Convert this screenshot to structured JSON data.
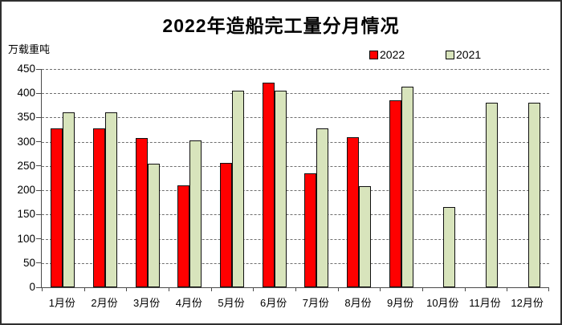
{
  "title": "2022年造船完工量分月情况",
  "unit_label": "万载重吨",
  "colors": {
    "series_2022": "#ff0000",
    "series_2021": "#d8e4bc",
    "bar_border": "#101010",
    "axis": "#4a4a4a",
    "gridline": "#707070",
    "frame_border": "#2f2f2f",
    "background": "#ffffff"
  },
  "chart_data": {
    "type": "bar",
    "title": "2022年造船完工量分月情况",
    "ylabel": "万载重吨",
    "xlabel": "",
    "categories": [
      "1月份",
      "2月份",
      "3月份",
      "4月份",
      "5月份",
      "6月份",
      "7月份",
      "8月份",
      "9月份",
      "10月份",
      "11月份",
      "12月份"
    ],
    "series": [
      {
        "name": "2022",
        "color": "#ff0000",
        "values": [
          327,
          327,
          308,
          210,
          256,
          422,
          235,
          310,
          386,
          null,
          null,
          null
        ]
      },
      {
        "name": "2021",
        "color": "#d8e4bc",
        "values": [
          361,
          361,
          255,
          302,
          405,
          405,
          327,
          208,
          414,
          166,
          381,
          381
        ]
      }
    ],
    "ylim": [
      0,
      450
    ],
    "y_tick_step": 50,
    "y_ticks": [
      0,
      50,
      100,
      150,
      200,
      250,
      300,
      350,
      400,
      450
    ],
    "grid": "horizontal-dashed",
    "legend_position": "top-right"
  }
}
